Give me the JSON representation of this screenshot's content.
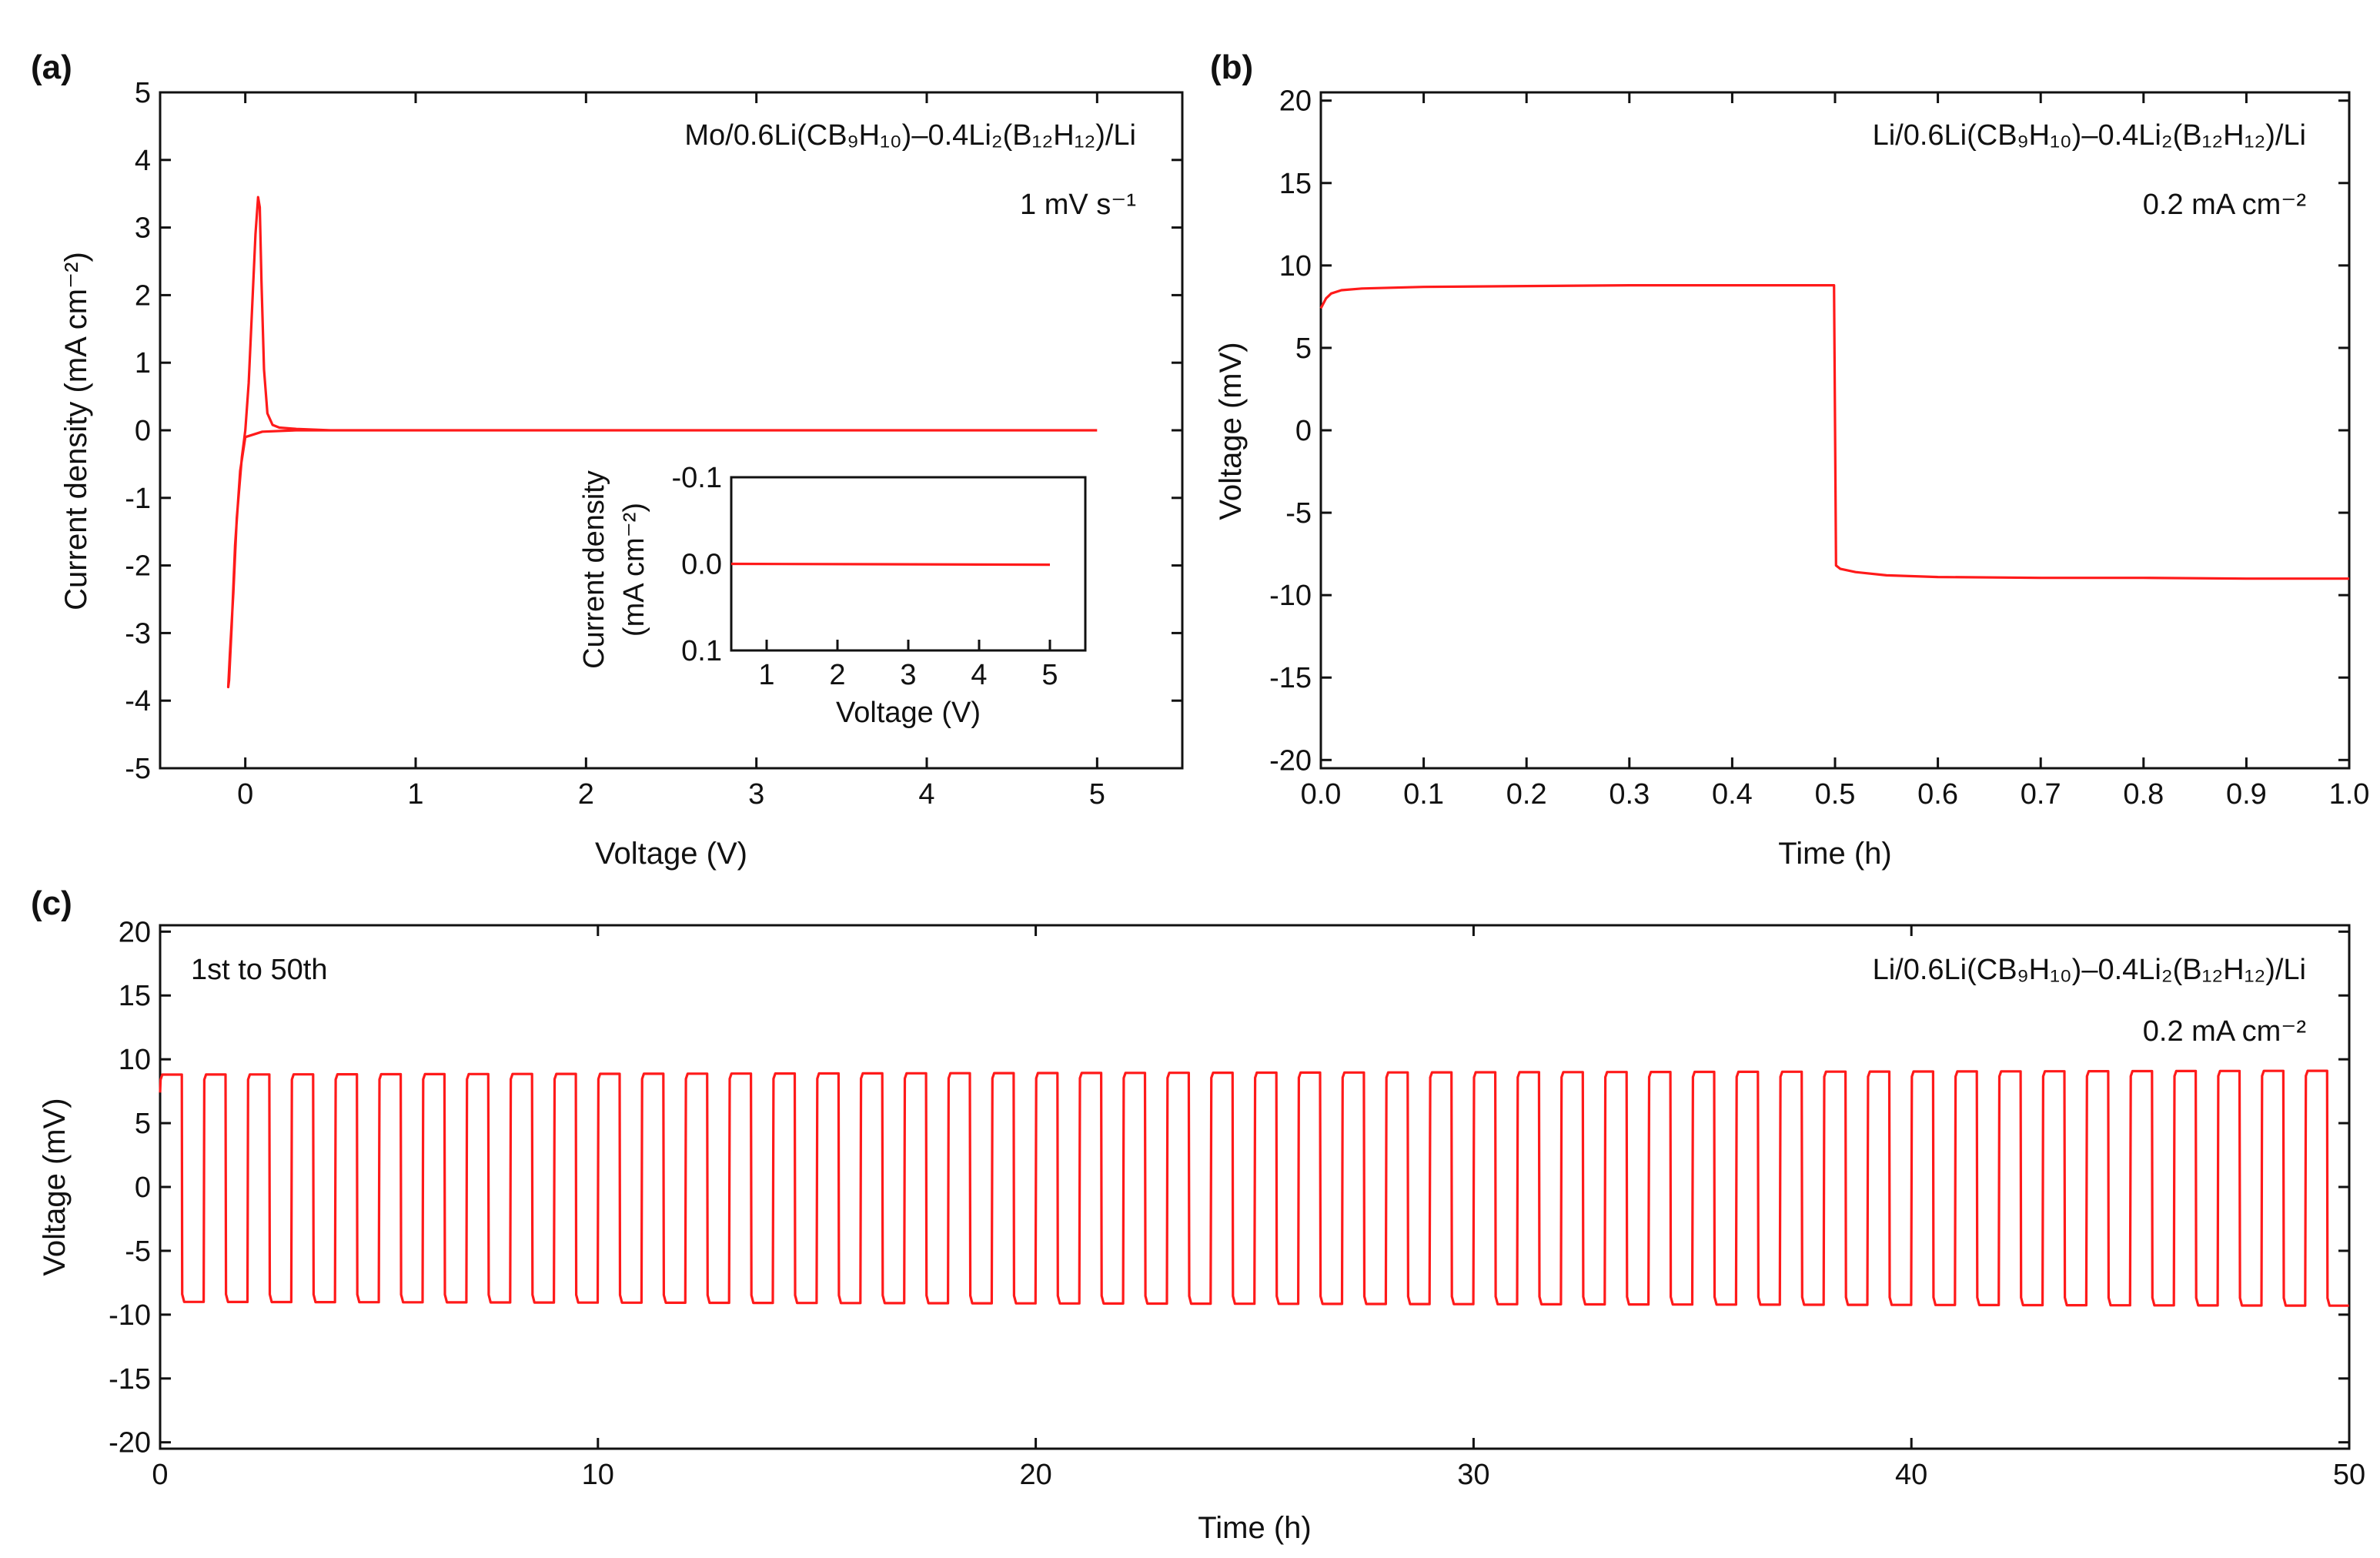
{
  "colors": {
    "trace": "#ff1a1a",
    "axis": "#111111",
    "background": "#ffffff"
  },
  "chart_data": [
    {
      "id": "a",
      "type": "line",
      "panel_label": "(a)",
      "annotations": [
        "Mo/0.6Li(CB₉H₁₀)–0.4Li₂(B₁₂H₁₂)/Li",
        "1 mV s⁻¹"
      ],
      "xlabel": "Voltage (V)",
      "ylabel": "Current density (mA cm⁻²)",
      "xlim": [
        -0.5,
        5.5
      ],
      "ylim": [
        -5,
        5
      ],
      "xticks": [
        0,
        1,
        2,
        3,
        4,
        5
      ],
      "xtick_labels": [
        "0",
        "1",
        "2",
        "3",
        "4",
        "5"
      ],
      "yticks": [
        -5,
        -4,
        -3,
        -2,
        -1,
        0,
        1,
        2,
        3,
        4,
        5
      ],
      "ytick_labels": [
        "-5",
        "-4",
        "-3",
        "-2",
        "-1",
        "0",
        "1",
        "2",
        "3",
        "4",
        "5"
      ],
      "series": [
        {
          "name": "CV",
          "x": [
            5.0,
            3.0,
            1.0,
            0.3,
            0.1,
            0.0,
            -0.03,
            -0.06,
            -0.08,
            -0.095,
            -0.1,
            -0.09,
            -0.07,
            -0.05,
            -0.02,
            0.0,
            0.02,
            0.04,
            0.06,
            0.075,
            0.085,
            0.095,
            0.11,
            0.13,
            0.16,
            0.2,
            0.3,
            0.5,
            1.0,
            3.0,
            5.0
          ],
          "y": [
            0.0,
            0.0,
            0.0,
            0.0,
            -0.02,
            -0.1,
            -0.6,
            -1.7,
            -2.9,
            -3.7,
            -3.8,
            -3.3,
            -2.4,
            -1.3,
            -0.4,
            0.0,
            0.7,
            1.8,
            2.9,
            3.45,
            3.3,
            2.2,
            0.9,
            0.25,
            0.08,
            0.04,
            0.02,
            0.0,
            0.0,
            0.0,
            0.0
          ]
        }
      ],
      "inset": {
        "xlabel": "Voltage (V)",
        "ylabel_line1": "Current density",
        "ylabel_line2": "(mA cm⁻²)",
        "xlim": [
          0.5,
          5.5
        ],
        "ylim": [
          -0.1,
          0.1
        ],
        "y_inverted": true,
        "xticks": [
          1,
          2,
          3,
          4,
          5
        ],
        "xtick_labels": [
          "1",
          "2",
          "3",
          "4",
          "5"
        ],
        "yticks": [
          -0.1,
          0.0,
          0.1
        ],
        "ytick_labels": [
          "-0.1",
          "0.0",
          "0.1"
        ],
        "series": [
          {
            "name": "anodic scan",
            "x": [
              0.5,
              5.0
            ],
            "y": [
              0.0,
              0.001
            ]
          }
        ]
      }
    },
    {
      "id": "b",
      "type": "line",
      "panel_label": "(b)",
      "annotations": [
        "Li/0.6Li(CB₉H₁₀)–0.4Li₂(B₁₂H₁₂)/Li",
        "0.2 mA cm⁻²"
      ],
      "xlabel": "Time (h)",
      "ylabel": "Voltage (mV)",
      "xlim": [
        0,
        1
      ],
      "ylim": [
        -20.5,
        20.5
      ],
      "xticks": [
        0,
        0.1,
        0.2,
        0.3,
        0.4,
        0.5,
        0.6,
        0.7,
        0.8,
        0.9,
        1.0
      ],
      "xtick_labels": [
        "0.0",
        "0.1",
        "0.2",
        "0.3",
        "0.4",
        "0.5",
        "0.6",
        "0.7",
        "0.8",
        "0.9",
        "1.0"
      ],
      "yticks": [
        -20,
        -15,
        -10,
        -5,
        0,
        5,
        10,
        15,
        20
      ],
      "ytick_labels": [
        "-20",
        "-15",
        "-10",
        "-5",
        "0",
        "5",
        "10",
        "15",
        "20"
      ],
      "series": [
        {
          "name": "voltage",
          "x": [
            0.0,
            0.005,
            0.01,
            0.02,
            0.04,
            0.1,
            0.2,
            0.3,
            0.4,
            0.499,
            0.501,
            0.505,
            0.52,
            0.55,
            0.6,
            0.7,
            0.8,
            0.9,
            1.0
          ],
          "y": [
            7.4,
            8.0,
            8.3,
            8.5,
            8.6,
            8.7,
            8.75,
            8.8,
            8.8,
            8.8,
            -8.2,
            -8.4,
            -8.6,
            -8.8,
            -8.9,
            -8.95,
            -8.95,
            -9.0,
            -9.0
          ]
        }
      ]
    },
    {
      "id": "c",
      "type": "line",
      "panel_label": "(c)",
      "annotations": [
        "1st to 50th",
        "Li/0.6Li(CB₉H₁₀)–0.4Li₂(B₁₂H₁₂)/Li",
        "0.2 mA cm⁻²"
      ],
      "xlabel": "Time (h)",
      "ylabel": "Voltage (mV)",
      "xlim": [
        0,
        50
      ],
      "ylim": [
        -20.5,
        20.5
      ],
      "xticks": [
        0,
        10,
        20,
        30,
        40,
        50
      ],
      "xtick_labels": [
        "0",
        "10",
        "20",
        "30",
        "40",
        "50"
      ],
      "yticks": [
        -20,
        -15,
        -10,
        -5,
        0,
        5,
        10,
        15,
        20
      ],
      "ytick_labels": [
        "-20",
        "-15",
        "-10",
        "-5",
        "0",
        "5",
        "10",
        "15",
        "20"
      ],
      "cycling": {
        "cycles": 50,
        "period_h": 1,
        "charge_mV": 8.8,
        "discharge_mV": -9.0,
        "final_charge_mV": 9.1,
        "final_discharge_mV": -9.3
      }
    }
  ]
}
